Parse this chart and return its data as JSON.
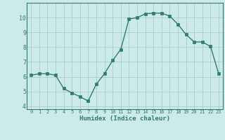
{
  "x": [
    0,
    1,
    2,
    3,
    4,
    5,
    6,
    7,
    8,
    9,
    10,
    11,
    12,
    13,
    14,
    15,
    16,
    17,
    18,
    19,
    20,
    21,
    22,
    23
  ],
  "y": [
    6.1,
    6.2,
    6.2,
    6.1,
    5.2,
    4.9,
    4.65,
    4.35,
    5.5,
    6.2,
    7.1,
    7.85,
    9.9,
    10.0,
    10.25,
    10.3,
    10.3,
    10.1,
    9.55,
    8.85,
    8.35,
    8.35,
    8.05,
    6.2
  ],
  "xlabel": "Humidex (Indice chaleur)",
  "xlim": [
    -0.5,
    23.5
  ],
  "ylim": [
    3.8,
    11.0
  ],
  "yticks": [
    4,
    5,
    6,
    7,
    8,
    9,
    10
  ],
  "xtick_labels": [
    "0",
    "1",
    "2",
    "3",
    "4",
    "5",
    "6",
    "7",
    "8",
    "9",
    "10",
    "11",
    "12",
    "13",
    "14",
    "15",
    "16",
    "17",
    "18",
    "19",
    "20",
    "21",
    "22",
    "23"
  ],
  "line_color": "#2e7d6e",
  "marker_color": "#2e7d6e",
  "bg_color": "#cceaea",
  "grid_color": "#aacccc",
  "spine_color": "#2e7d6e",
  "label_color": "#2e7d6e",
  "tick_color": "#2e7d6e"
}
